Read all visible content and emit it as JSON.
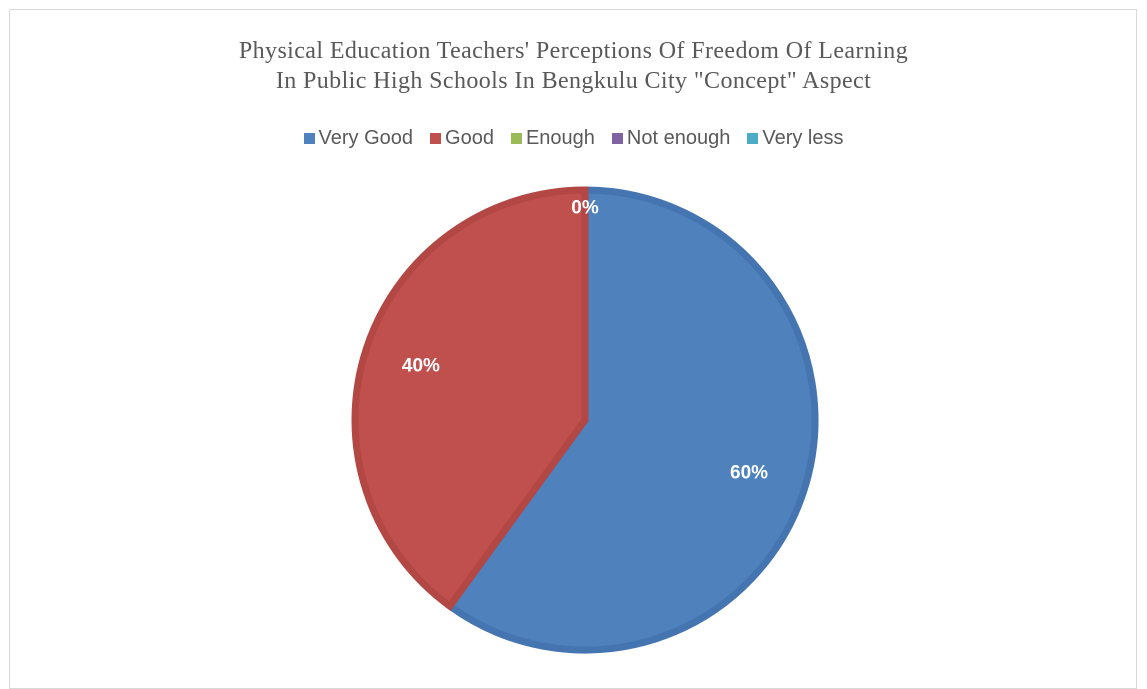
{
  "chart_data": {
    "type": "pie",
    "title_lines": [
      "Physical Education Teachers' Perceptions Of Freedom Of Learning",
      "In Public High Schools In Bengkulu City \"Concept\" Aspect"
    ],
    "legend_position": "top",
    "categories": [
      "Very Good",
      "Good",
      "Enough",
      "Not enough",
      "Very less"
    ],
    "values": [
      60,
      40,
      0,
      0,
      0
    ],
    "data_labels": [
      "60%",
      "40%",
      "0%",
      "",
      ""
    ],
    "colors": [
      "#4F81BD",
      "#C0504D",
      "#9BBB59",
      "#8064A2",
      "#4BACC6"
    ],
    "edge_colors": [
      "#4575B0",
      "#B24744",
      "#8FAF50",
      "#74599A",
      "#43A0BA"
    ]
  }
}
